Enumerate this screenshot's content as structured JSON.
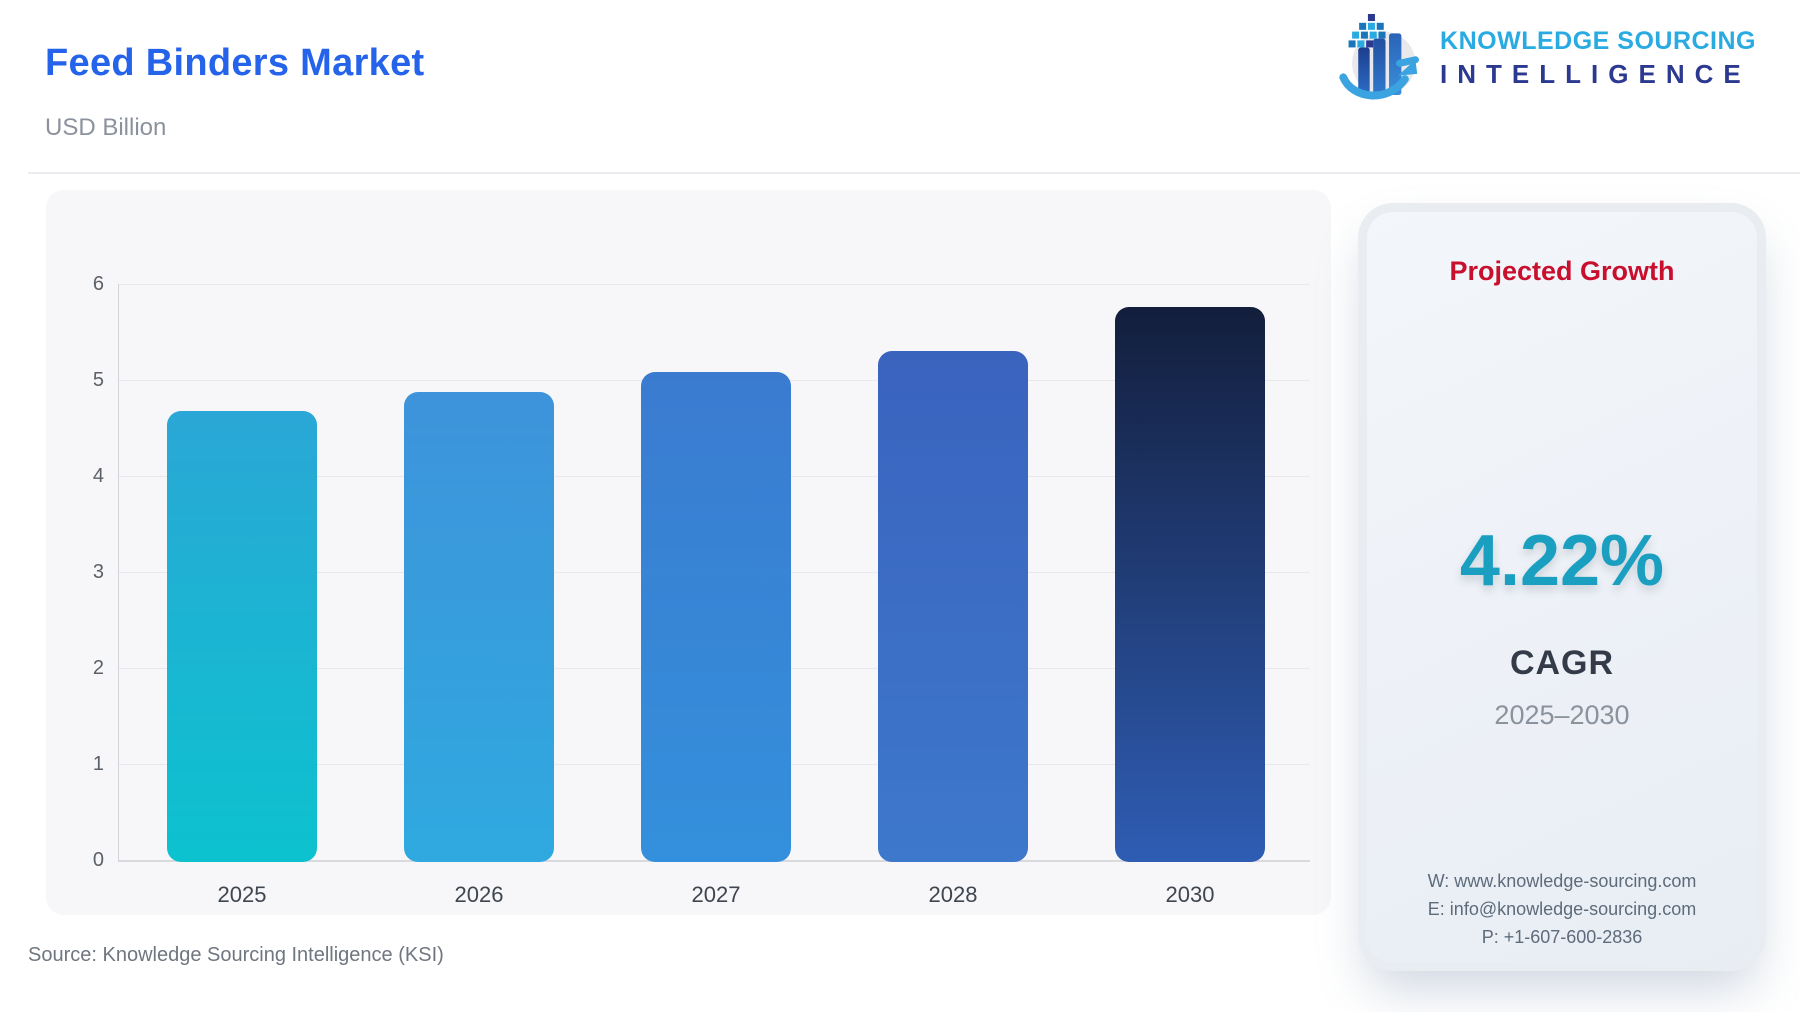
{
  "page": {
    "title": "Feed Binders Market",
    "subtitle": "USD Billion",
    "source_note": "Source: Knowledge Sourcing Intelligence (KSI)"
  },
  "logo": {
    "icon": "globe-bar-chart-arrow-icon",
    "line1": "KNOWLEDGE SOURCING",
    "line2": "INTELLIGENCE",
    "line1_color": "#29abe2",
    "line2_color": "#2b3990"
  },
  "chart_data": {
    "type": "bar",
    "title": "Feed Binders Market",
    "ylabel": "USD Billion",
    "categories": [
      "2025",
      "2026",
      "2027",
      "2028",
      "2030"
    ],
    "values": [
      4.7,
      4.9,
      5.1,
      5.32,
      5.78
    ],
    "ylim": [
      0,
      6
    ],
    "yticks": [
      0,
      1,
      2,
      3,
      4,
      5,
      6
    ],
    "grid": true,
    "legend": "none",
    "bar_colors": [
      {
        "top": "#2aa7d6",
        "bottom": "#0cc2cf"
      },
      {
        "top": "#3e93da",
        "bottom": "#2fa9e0"
      },
      {
        "top": "#3a7bd0",
        "bottom": "#3490dc"
      },
      {
        "top": "#3a63be",
        "bottom": "#3d78cc"
      },
      {
        "top": "#131e3c",
        "bottom": "#2f5db4"
      }
    ]
  },
  "growth_panel": {
    "heading": "Projected Growth",
    "heading_color": "#c8102e",
    "cagr_value": "4.22%",
    "cagr_value_color": "#1b9fc0",
    "cagr_label": "CAGR",
    "period": "2025–2030",
    "contact": {
      "website": "W: www.knowledge-sourcing.com",
      "email": "E: info@knowledge-sourcing.com",
      "phone": "P: +1-607-600-2836"
    }
  }
}
